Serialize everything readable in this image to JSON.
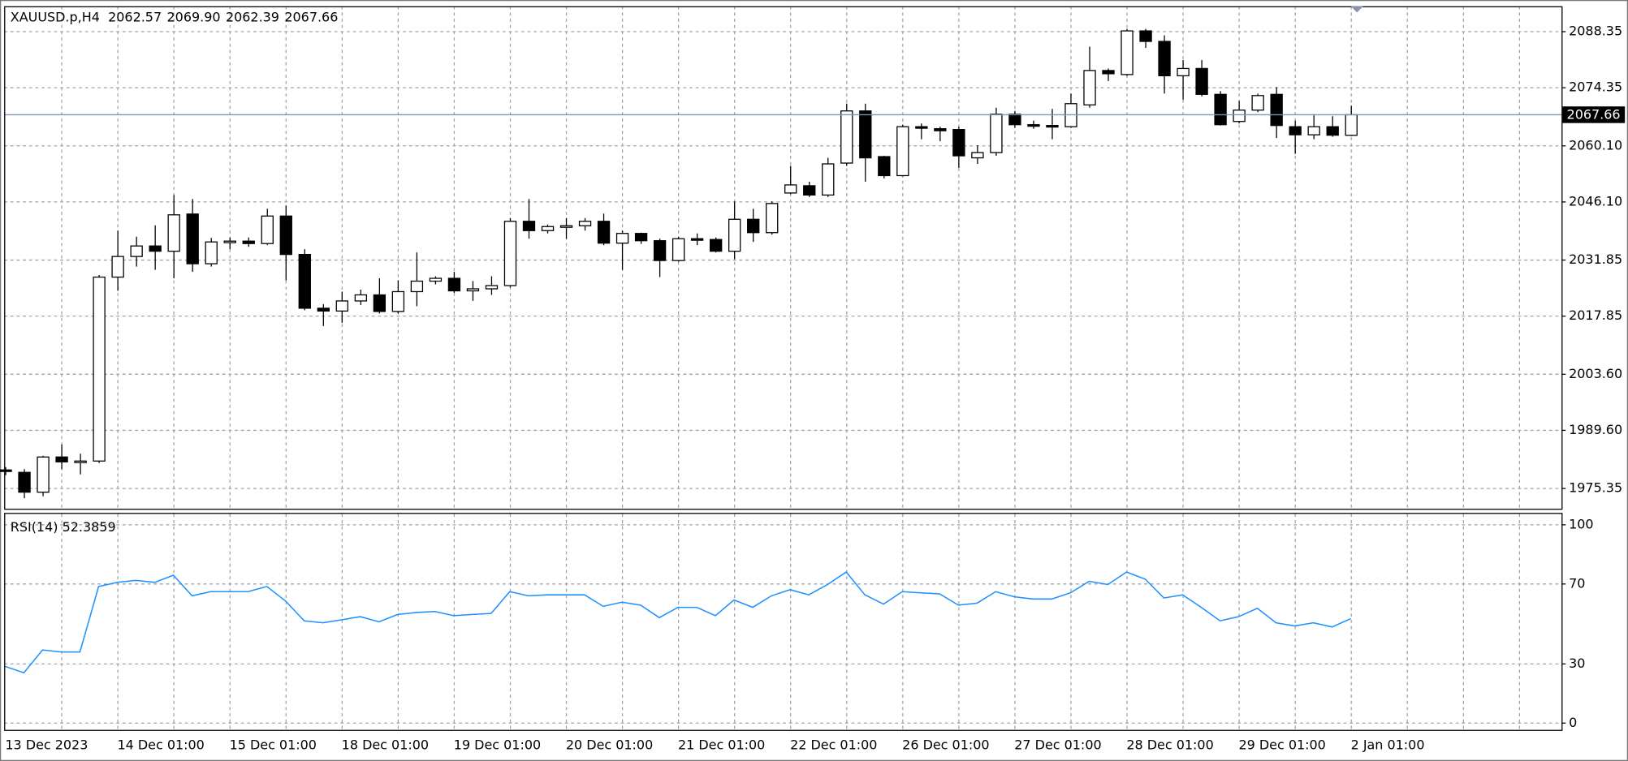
{
  "chart_data": [
    {
      "type": "candlestick",
      "title": "XAUUSD.p,H4",
      "digits": 2,
      "categories": [
        "13 Dec 2023",
        null,
        null,
        null,
        null,
        null,
        "14 Dec 01:00",
        null,
        null,
        null,
        null,
        null,
        "15 Dec 01:00",
        null,
        null,
        null,
        null,
        null,
        "18 Dec 01:00",
        null,
        null,
        null,
        null,
        null,
        "19 Dec 01:00",
        null,
        null,
        null,
        null,
        null,
        "20 Dec 01:00",
        null,
        null,
        null,
        null,
        null,
        "21 Dec 01:00",
        null,
        null,
        null,
        null,
        null,
        "22 Dec 01:00",
        null,
        null,
        null,
        null,
        null,
        "26 Dec 01:00",
        null,
        null,
        null,
        null,
        null,
        "27 Dec 01:00",
        null,
        null,
        null,
        null,
        null,
        "28 Dec 01:00",
        null,
        null,
        null,
        null,
        null,
        "29 Dec 01:00",
        null,
        null,
        null,
        null,
        null,
        "2 Jan 01:00"
      ],
      "open": [
        1979.8,
        1979.2,
        1974.3,
        1983.0,
        1981.8,
        1982.0,
        2027.5,
        2032.6,
        2035.2,
        2033.9,
        2043.1,
        2030.8,
        2036.2,
        2036.4,
        2035.8,
        2042.6,
        2033.1,
        2019.8,
        2019.1,
        2021.6,
        2023.1,
        2019.0,
        2023.9,
        2026.5,
        2027.2,
        2024.1,
        2024.6,
        2025.4,
        2041.3,
        2039.0,
        2040.0,
        2040.2,
        2041.3,
        2035.9,
        2038.3,
        2036.5,
        2031.6,
        2037.0,
        2036.8,
        2033.9,
        2041.8,
        2038.5,
        2048.3,
        2050.1,
        2047.8,
        2055.7,
        2068.6,
        2057.3,
        2052.6,
        2064.7,
        2064.2,
        2064.0,
        2057.0,
        2058.3,
        2067.8,
        2065.2,
        2065.0,
        2064.7,
        2070.1,
        2078.6,
        2077.6,
        2088.4,
        2085.8,
        2077.3,
        2079.1,
        2072.7,
        2066.0,
        2068.8,
        2072.7,
        2064.7,
        2062.7,
        2064.7,
        2062.57
      ],
      "high": [
        1980.5,
        1980.0,
        1983.3,
        1986.1,
        1983.8,
        2028.0,
        2039.0,
        2037.5,
        2040.3,
        2047.8,
        2046.8,
        2037.2,
        2037.3,
        2037.3,
        2044.4,
        2045.2,
        2034.4,
        2020.8,
        2023.9,
        2024.4,
        2027.2,
        2026.7,
        2033.6,
        2027.7,
        2028.8,
        2026.5,
        2027.7,
        2042.1,
        2046.8,
        2040.5,
        2042.1,
        2042.1,
        2043.2,
        2039.0,
        2038.5,
        2037.0,
        2037.5,
        2038.3,
        2037.3,
        2046.2,
        2044.4,
        2046.2,
        2055.0,
        2051.1,
        2057.0,
        2070.4,
        2070.4,
        2057.5,
        2065.2,
        2065.5,
        2064.7,
        2064.7,
        2060.1,
        2069.4,
        2068.6,
        2066.2,
        2069.1,
        2072.9,
        2084.5,
        2079.1,
        2088.9,
        2088.9,
        2087.3,
        2081.2,
        2081.2,
        2073.5,
        2071.1,
        2072.9,
        2074.5,
        2066.2,
        2067.8,
        2067.3,
        2069.9
      ],
      "low": [
        1978.5,
        1972.8,
        1973.3,
        1980.0,
        1978.7,
        1981.5,
        2024.1,
        2030.1,
        2029.3,
        2027.2,
        2028.8,
        2030.1,
        2034.4,
        2035.0,
        2035.4,
        2026.7,
        2019.3,
        2015.4,
        2016.2,
        2020.6,
        2018.5,
        2018.5,
        2020.3,
        2025.7,
        2023.6,
        2021.6,
        2023.1,
        2024.9,
        2037.0,
        2038.3,
        2037.0,
        2039.0,
        2035.4,
        2029.3,
        2035.7,
        2027.5,
        2031.3,
        2035.4,
        2033.6,
        2031.9,
        2036.2,
        2038.0,
        2048.0,
        2047.3,
        2047.3,
        2055.0,
        2051.1,
        2051.9,
        2052.4,
        2061.6,
        2061.1,
        2054.5,
        2055.5,
        2057.5,
        2064.4,
        2064.2,
        2061.6,
        2064.4,
        2069.4,
        2076.0,
        2077.3,
        2084.2,
        2072.9,
        2071.4,
        2072.2,
        2065.0,
        2065.5,
        2068.3,
        2061.9,
        2058.0,
        2061.6,
        2062.2,
        2062.39
      ],
      "close": [
        1979.5,
        1974.3,
        1983.0,
        1981.8,
        1982.0,
        2027.5,
        2032.6,
        2035.2,
        2033.9,
        2042.9,
        2030.8,
        2036.2,
        2036.4,
        2035.8,
        2042.6,
        2033.1,
        2019.8,
        2019.1,
        2021.6,
        2023.1,
        2019.0,
        2023.9,
        2026.5,
        2027.2,
        2024.1,
        2024.6,
        2025.4,
        2041.3,
        2039.0,
        2040.0,
        2040.2,
        2041.3,
        2035.9,
        2038.3,
        2036.5,
        2031.6,
        2037.0,
        2036.8,
        2033.9,
        2041.8,
        2038.5,
        2045.7,
        2050.3,
        2047.8,
        2055.5,
        2068.6,
        2057.0,
        2052.6,
        2064.7,
        2064.4,
        2063.7,
        2057.5,
        2058.3,
        2067.8,
        2065.2,
        2065.0,
        2064.7,
        2070.4,
        2078.6,
        2077.8,
        2088.4,
        2085.8,
        2077.3,
        2079.1,
        2072.7,
        2065.2,
        2068.8,
        2072.4,
        2065.0,
        2062.7,
        2064.7,
        2062.6,
        2067.66
      ],
      "up_color": "#ffffff",
      "down_color": "#000000",
      "ylim": [
        1969.95,
        2094.5
      ],
      "yticks": [
        2088.35,
        2074.35,
        {
          "value": 2060.1,
          "label": "2060.10"
        },
        {
          "value": 2046.1,
          "label": "2046.10"
        },
        2031.85,
        2017.85,
        {
          "value": 2003.6,
          "label": "2003.60"
        },
        {
          "value": 1989.6,
          "label": "1989.60"
        },
        1975.35
      ],
      "grid": true
    },
    {
      "type": "line",
      "title": "RSI(14)",
      "color": "#1e90ff",
      "values": [
        28.3,
        25.1,
        36.6,
        35.6,
        35.6,
        68.6,
        70.7,
        71.7,
        70.7,
        74.3,
        63.9,
        66.0,
        66.0,
        66.0,
        68.6,
        61.3,
        51.3,
        50.3,
        51.8,
        53.4,
        50.8,
        54.5,
        55.5,
        56.0,
        53.9,
        54.5,
        55.0,
        66.0,
        63.9,
        64.4,
        64.4,
        64.4,
        58.6,
        60.7,
        59.2,
        52.9,
        58.1,
        58.1,
        53.9,
        61.8,
        58.1,
        63.9,
        67.0,
        64.4,
        69.6,
        75.9,
        64.4,
        59.7,
        66.0,
        65.4,
        64.9,
        59.2,
        60.2,
        66.0,
        63.4,
        62.3,
        62.3,
        65.4,
        71.2,
        69.6,
        75.9,
        72.3,
        62.8,
        64.4,
        58.1,
        51.3,
        53.4,
        57.6,
        50.3,
        48.7,
        50.3,
        48.2,
        52.3859
      ],
      "ylim": [
        -4.2,
        105.2
      ],
      "yticks": [
        100,
        70,
        30,
        0
      ],
      "grid": true
    }
  ]
}
